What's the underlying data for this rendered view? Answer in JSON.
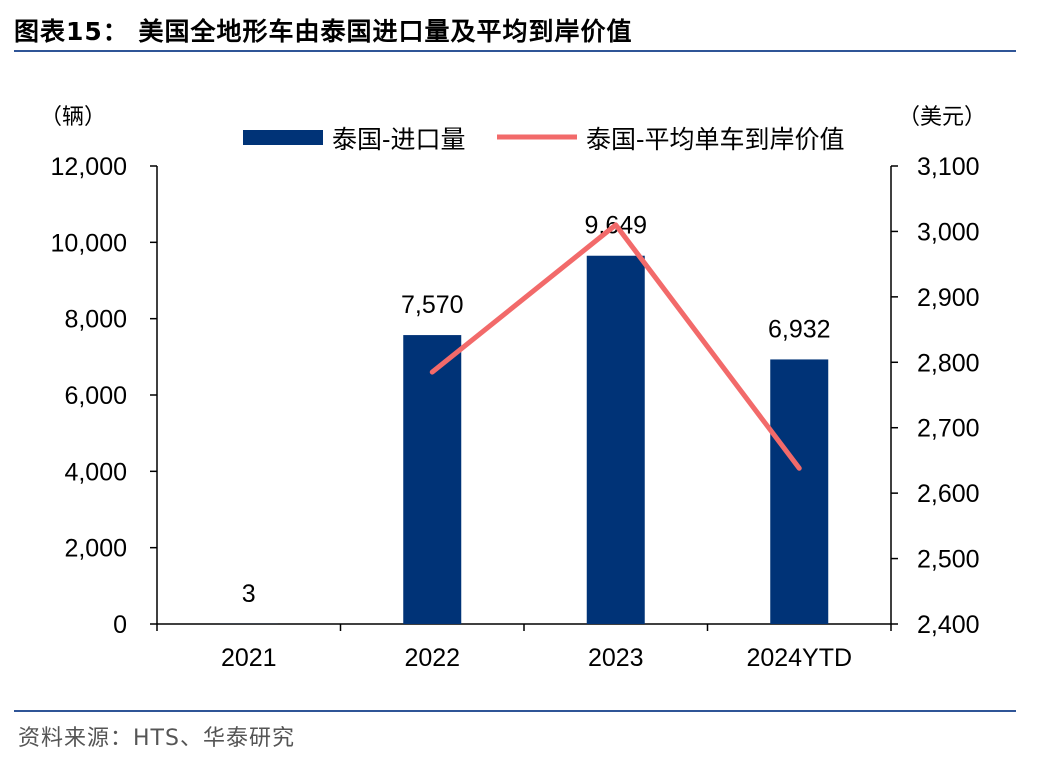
{
  "header": {
    "title": "图表15：  美国全地形车由泰国进口量及平均到岸价值"
  },
  "footer": {
    "source": "资料来源：HTS、华泰研究"
  },
  "chart_data": {
    "type": "bar+line",
    "categories": [
      "2021",
      "2022",
      "2023",
      "2024YTD"
    ],
    "left_axis": {
      "label": "（辆）",
      "ylim": [
        0,
        12000
      ],
      "ticks": [
        "0",
        "2,000",
        "4,000",
        "6,000",
        "8,000",
        "10,000",
        "12,000"
      ]
    },
    "right_axis": {
      "label": "（美元）",
      "ylim": [
        2400,
        3100
      ],
      "ticks": [
        "2,400",
        "2,500",
        "2,600",
        "2,700",
        "2,800",
        "2,900",
        "3,000",
        "3,100"
      ]
    },
    "series": [
      {
        "name": "泰国-进口量",
        "type": "bar",
        "axis": "left",
        "values": [
          3,
          7570,
          9649,
          6932
        ],
        "data_labels": [
          "3",
          "7,570",
          "9,649",
          "6,932"
        ],
        "color": "#003377"
      },
      {
        "name": "泰国-平均单车到岸价值",
        "type": "line",
        "axis": "right",
        "values": [
          null,
          2785,
          3010,
          2638
        ],
        "color": "#f26a6a"
      }
    ],
    "legend": "top-center",
    "grid": false
  }
}
